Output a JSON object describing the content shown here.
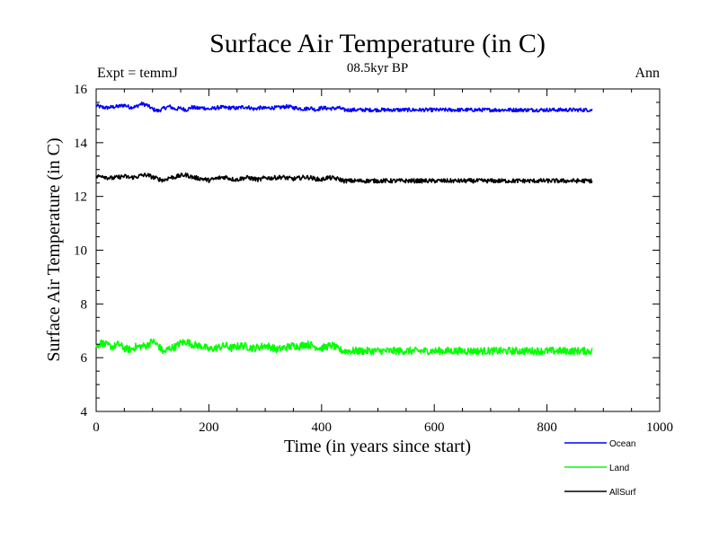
{
  "chart_data": {
    "type": "line",
    "title": "Surface Air Temperature (in C)",
    "subtitle": "08.5kyr BP",
    "left_label": "Expt = temmJ",
    "right_label": "Ann",
    "xlabel": "Time (in years since start)",
    "ylabel": "Surface Air Temperature (in C)",
    "xlim": [
      0,
      1000
    ],
    "ylim": [
      4,
      16
    ],
    "x_ticks": [
      "0",
      "200",
      "400",
      "600",
      "800",
      "1000"
    ],
    "y_ticks": [
      "4",
      "6",
      "8",
      "10",
      "12",
      "14",
      "16"
    ],
    "grid": false,
    "legend_position": "bottom-right",
    "series": [
      {
        "name": "Ocean",
        "color": "#0000ff",
        "x_start": 0,
        "x_end": 880,
        "points_every": 10,
        "anchors": [
          15.38,
          15.32,
          15.3,
          15.33,
          15.35,
          15.4,
          15.32,
          15.33,
          15.45,
          15.4,
          15.25,
          15.18,
          15.28,
          15.35,
          15.25,
          15.28,
          15.22,
          15.32,
          15.28,
          15.3,
          15.25,
          15.28,
          15.32,
          15.3,
          15.3,
          15.28,
          15.33,
          15.32,
          15.25,
          15.3,
          15.28,
          15.3,
          15.3,
          15.32,
          15.35,
          15.3,
          15.28,
          15.25,
          15.3,
          15.22,
          15.3,
          15.28,
          15.27,
          15.3,
          15.22
        ],
        "noise": 0.07
      },
      {
        "name": "Land",
        "color": "#00ff00",
        "x_start": 0,
        "x_end": 880,
        "points_every": 10,
        "anchors": [
          6.45,
          6.55,
          6.45,
          6.4,
          6.5,
          6.35,
          6.3,
          6.4,
          6.42,
          6.45,
          6.62,
          6.45,
          6.2,
          6.35,
          6.4,
          6.55,
          6.6,
          6.5,
          6.45,
          6.42,
          6.3,
          6.35,
          6.4,
          6.45,
          6.35,
          6.42,
          6.45,
          6.4,
          6.35,
          6.4,
          6.45,
          6.4,
          6.3,
          6.35,
          6.4,
          6.45,
          6.42,
          6.5,
          6.48,
          6.4,
          6.35,
          6.42,
          6.45,
          6.3,
          6.25
        ],
        "noise": 0.14
      },
      {
        "name": "AllSurf",
        "color": "#000000",
        "x_start": 0,
        "x_end": 880,
        "points_every": 10,
        "anchors": [
          12.72,
          12.78,
          12.7,
          12.68,
          12.72,
          12.75,
          12.7,
          12.72,
          12.78,
          12.8,
          12.72,
          12.65,
          12.6,
          12.7,
          12.72,
          12.78,
          12.8,
          12.72,
          12.68,
          12.65,
          12.6,
          12.65,
          12.7,
          12.72,
          12.65,
          12.62,
          12.68,
          12.7,
          12.65,
          12.62,
          12.7,
          12.68,
          12.7,
          12.72,
          12.68,
          12.65,
          12.68,
          12.72,
          12.7,
          12.65,
          12.62,
          12.7,
          12.68,
          12.65,
          12.58
        ],
        "noise": 0.08
      }
    ]
  }
}
